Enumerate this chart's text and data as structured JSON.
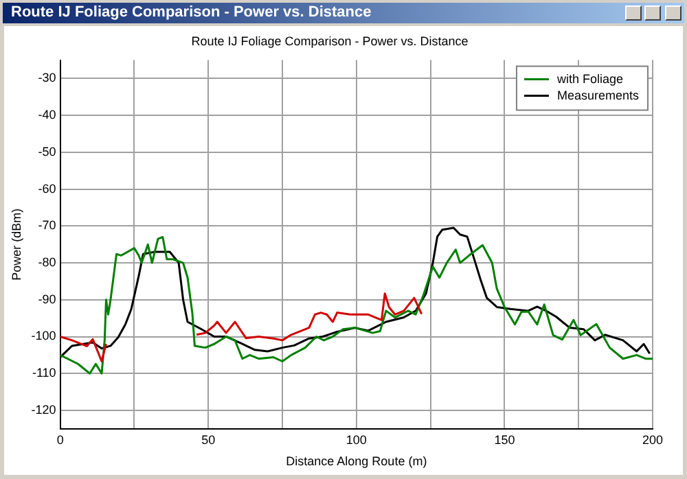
{
  "chart_data": {
    "type": "line",
    "title": "Route IJ Foliage Comparison - Power vs. Distance",
    "xlabel": "Distance Along Route (m)",
    "ylabel": "Power (dBm)",
    "annotations": [
      "Route IJ Foliage Comparison - Power vs. Distance"
    ],
    "xlim": [
      0,
      200
    ],
    "ylim": [
      -125,
      -25
    ],
    "xticks": [
      0,
      {
        "value": 25,
        "label": null
      },
      50,
      {
        "value": 75,
        "label": null
      },
      100,
      {
        "value": 125,
        "label": null
      },
      150,
      {
        "value": 175,
        "label": null
      },
      200
    ],
    "yticks": [
      -120,
      -110,
      -100,
      -90,
      -80,
      -70,
      -60,
      -50,
      -40,
      -30
    ],
    "grid": true,
    "legend": "top right",
    "marker": "none",
    "line_style": "solid",
    "series": [
      {
        "color": "#d40000",
        "x": [
          0,
          4,
          9,
          11,
          14,
          15.5,
          16,
          46,
          49,
          52,
          53,
          56,
          59,
          62.7,
          67,
          72,
          75,
          78,
          84,
          86,
          88,
          90,
          92,
          93.5,
          98,
          102,
          104,
          108.5,
          109.6,
          111,
          113,
          116,
          119.5,
          122
        ],
        "values": [
          -100,
          -101,
          -102.6,
          -100.7,
          -106.7,
          -102,
          null,
          -99.5,
          -99,
          -97,
          -96,
          -99,
          -96,
          -100.4,
          -100,
          -100.5,
          -101,
          -99.5,
          -97.6,
          -94,
          -93.5,
          -94,
          -96,
          -93.5,
          -94,
          -94,
          -94,
          -95.5,
          -88.3,
          -92,
          -94,
          -93,
          -89.5,
          -93.9
        ]
      },
      {
        "name": "with Foliage",
        "color": "#008000",
        "x": [
          0,
          6,
          10,
          12,
          14,
          15,
          15.5,
          16.2,
          17,
          19,
          20.6,
          25,
          26.5,
          27.5,
          29.6,
          31,
          33,
          34.6,
          36,
          38,
          41.5,
          43,
          44.6,
          45.4,
          49,
          52,
          56,
          59,
          61.5,
          64,
          67,
          72,
          75,
          78,
          82.7,
          86.5,
          89,
          92,
          95.5,
          99.5,
          105.5,
          108,
          110,
          113,
          117.5,
          120,
          122.5,
          125.8,
          128,
          130.5,
          133.5,
          135,
          138,
          142.6,
          145.8,
          147.4,
          150,
          153.5,
          155.7,
          158,
          161,
          163.4,
          166.4,
          169.5,
          173.3,
          175.7,
          181,
          185.5,
          190,
          194.6,
          197.6,
          200
        ],
        "values": [
          -105,
          -107.4,
          -110,
          -107.4,
          -110,
          -101,
          -90,
          -94,
          -90,
          -77.6,
          -78,
          -76,
          -78,
          -80,
          -75,
          -80,
          -73.5,
          -73,
          -79,
          -79,
          -80,
          -84,
          -93.6,
          -102.5,
          -103,
          -102,
          -100,
          -101,
          -106,
          -105,
          -106,
          -105.6,
          -106.7,
          -105,
          -103,
          -100,
          -101,
          -100,
          -98,
          -97.6,
          -99,
          -98.5,
          -93,
          -94.8,
          -93,
          -94,
          -89,
          -81,
          -84,
          -80,
          -76.4,
          -80,
          -78,
          -75.2,
          -80,
          -87,
          -92,
          -96.7,
          -93.3,
          -93.2,
          -96.7,
          -91.3,
          -99.6,
          -100.8,
          -95.5,
          -99.6,
          -96.6,
          -103,
          -106,
          -105,
          -106,
          -106
        ]
      },
      {
        "name": "Measurements",
        "color": "#000000",
        "x": [
          0,
          4,
          11,
          14,
          17,
          19.6,
          22,
          24,
          26.5,
          28,
          32,
          37,
          40,
          41.5,
          43,
          47.7,
          52,
          56,
          61,
          65.7,
          70,
          75,
          79,
          84,
          88.7,
          93,
          99.5,
          104,
          110,
          116,
          120,
          123.5,
          125.8,
          127.3,
          129,
          132.8,
          135,
          137.4,
          139.7,
          142,
          144,
          147.5,
          152,
          158,
          161,
          164,
          167.4,
          172,
          176.7,
          180.5,
          184,
          190,
          194.6,
          197,
          199
        ],
        "values": [
          -105.6,
          -102.5,
          -101.6,
          -103.2,
          -102.5,
          -100.2,
          -96.7,
          -92.5,
          -83.6,
          -77.6,
          -77,
          -77,
          -80,
          -90,
          -96,
          -98,
          -100,
          -100,
          -101.8,
          -103.6,
          -104,
          -103,
          -102.4,
          -100.5,
          -100,
          -98.8,
          -97.6,
          -98.4,
          -96,
          -94.8,
          -93,
          -88.3,
          -80,
          -72.9,
          -71,
          -70.5,
          -72.3,
          -72.9,
          -78.8,
          -84.8,
          -89.5,
          -92,
          -92.5,
          -93,
          -91.9,
          -93,
          -94.6,
          -97.6,
          -98,
          -101,
          -99.5,
          -101,
          -104,
          -102,
          -104.6
        ]
      }
    ]
  }
}
